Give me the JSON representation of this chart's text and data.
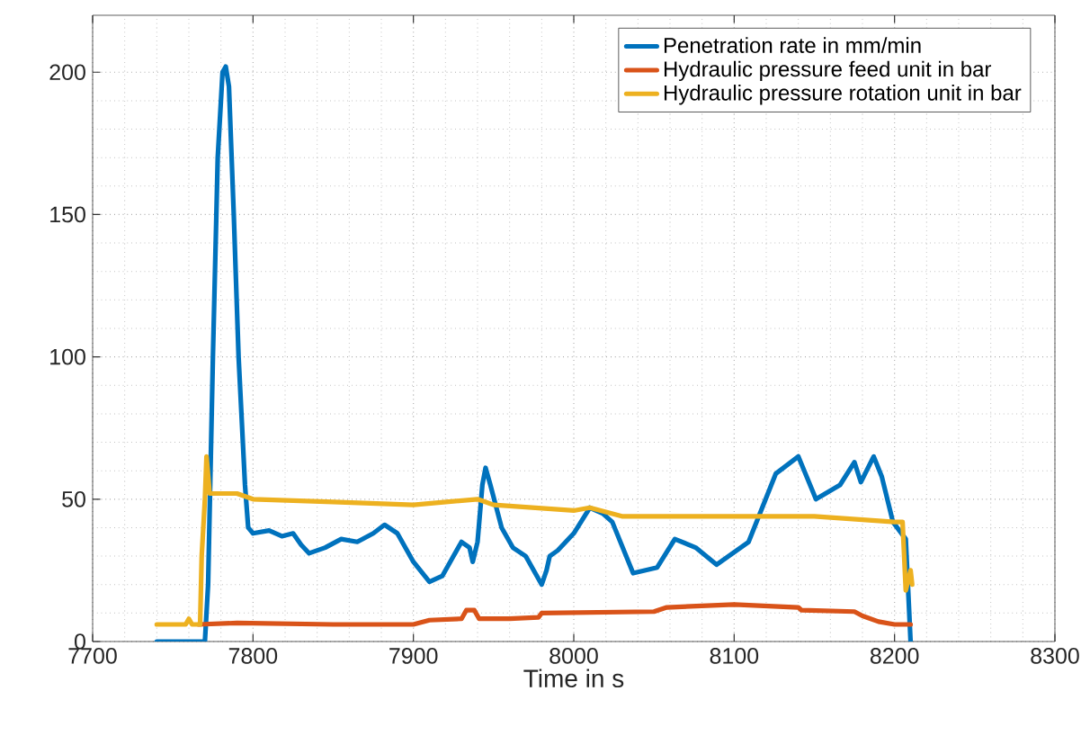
{
  "chart_data": {
    "type": "line",
    "xlabel": "Time in s",
    "xlim": [
      7700,
      8300
    ],
    "ylim": [
      0,
      220
    ],
    "xticks": [
      7700,
      7800,
      7900,
      8000,
      8100,
      8200,
      8300
    ],
    "yticks": [
      0,
      50,
      100,
      150,
      200
    ],
    "grid": true,
    "legend": "top right",
    "line_style": "solid",
    "series": [
      {
        "name": "Penetration rate in mm/min",
        "color": "#0072bd",
        "x": [
          7740,
          7770,
          7772,
          7775,
          7778,
          7781,
          7783,
          7785,
          7788,
          7791,
          7795,
          7797,
          7800,
          7810,
          7818,
          7825,
          7830,
          7835,
          7845,
          7855,
          7865,
          7875,
          7882,
          7890,
          7900,
          7910,
          7918,
          7925,
          7930,
          7935,
          7937,
          7940,
          7943,
          7945,
          7948,
          7955,
          7962,
          7970,
          7980,
          7983,
          7985,
          7990,
          8000,
          8010,
          8018,
          8024,
          8037,
          8052,
          8063,
          8076,
          8089,
          8109,
          8126,
          8140,
          8151,
          8166,
          8175,
          8179,
          8187,
          8192,
          8199,
          8207,
          8210
        ],
        "values": [
          0,
          0,
          20,
          100,
          170,
          200,
          202,
          195,
          150,
          100,
          55,
          40,
          38,
          39,
          37,
          38,
          34,
          31,
          33,
          36,
          35,
          38,
          41,
          38,
          28,
          21,
          23,
          30,
          35,
          33,
          28,
          35,
          55,
          61,
          55,
          40,
          33,
          30,
          20,
          25,
          30,
          32,
          38,
          47,
          45,
          42,
          24,
          26,
          36,
          33,
          27,
          35,
          59,
          65,
          50,
          55,
          63,
          56,
          65,
          58,
          42,
          36,
          0
        ]
      },
      {
        "name": "Hydraulic pressure feed unit in bar",
        "color": "#d95319",
        "x": [
          7766,
          7790,
          7850,
          7900,
          7910,
          7930,
          7933,
          7938,
          7941,
          7960,
          7978,
          7980,
          8050,
          8058,
          8100,
          8140,
          8142,
          8175,
          8180,
          8190,
          8200,
          8210
        ],
        "values": [
          6,
          6.5,
          6,
          6,
          7.5,
          8,
          11,
          11,
          8,
          8,
          8.5,
          10,
          10.5,
          12,
          13,
          12,
          11,
          10.5,
          9,
          7,
          6,
          6
        ]
      },
      {
        "name": "Hydraulic pressure rotation unit in bar",
        "color": "#edb120",
        "x": [
          7740,
          7758,
          7760,
          7762,
          7767,
          7768,
          7770,
          7771,
          7773,
          7790,
          7800,
          7850,
          7900,
          7940,
          7950,
          8000,
          8010,
          8030,
          8100,
          8150,
          8200,
          8205,
          8207,
          8210,
          8211
        ],
        "values": [
          6,
          6,
          8,
          6,
          6,
          30,
          50,
          65,
          52,
          52,
          50,
          49,
          48,
          50,
          48,
          46,
          47,
          44,
          44,
          44,
          42,
          42,
          18,
          25,
          20
        ]
      }
    ]
  }
}
